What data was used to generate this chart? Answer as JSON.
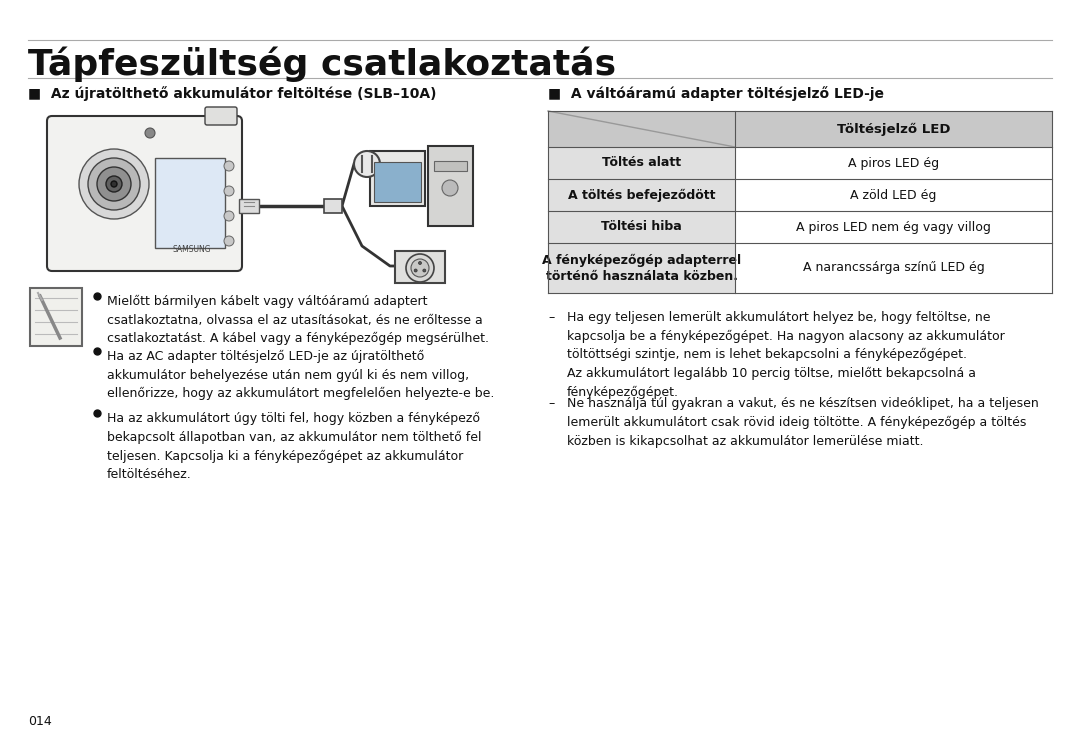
{
  "page_title": "Tápfeszültség csatlakoztatás",
  "bg_color": "#ffffff",
  "text_color": "#111111",
  "section1_title": "■  Az újratölthető akkumulátor feltöltése (SLB–10A)",
  "section2_title": "■  A váltóáramú adapter töltésjelző LED-je",
  "table_header": "Töltésjelző LED",
  "table_rows": [
    [
      "Töltés alatt",
      "A piros LED ég"
    ],
    [
      "A töltés befejeződött",
      "A zöld LED ég"
    ],
    [
      "Töltési hiba",
      "A piros LED nem ég vagy villog"
    ],
    [
      "A fényképezőgép adapterrel\ntörténő használata közben.",
      "A narancssárga színű LED ég"
    ]
  ],
  "table_header_bg": "#c8c8c8",
  "table_row_left_bg": "#e0e0e0",
  "table_row_right_bg": "#ffffff",
  "table_border_color": "#555555",
  "bullet_points": [
    "Mielőtt bármilyen kábelt vagy váltóáramú adaptert\ncsatlakoztatna, olvassa el az utasításokat, és ne erőltesse a\ncsatlakoztatást. A kábel vagy a fényképezőgép megsérülhet.",
    "Ha az AC adapter töltésjelző LED-je az újratölthető\nakkumulátor behelyezése után nem gyúl ki és nem villog,\nellenőrizze, hogy az akkumulátort megfelelően helyezte-e be.",
    "Ha az akkumulátort úgy tölti fel, hogy közben a fényképező\nbekapcsolt állapotban van, az akkumulátor nem tölthető fel\nteljesen. Kapcsolja ki a fényképezőgépet az akkumulátor\nfeltöltéséhez."
  ],
  "dash_points": [
    "Ha egy teljesen lemerült akkumulátort helyez be, hogy feltöltse, ne\nkapcsolja be a fényképezőgépet. Ha nagyon alacsony az akkumulátor\ntöltöttségi szintje, nem is lehet bekapcsolni a fényképezőgépet.\nAz akkumulátort legalább 10 percig töltse, mielőtt bekapcsolná a\nfényképezőgépet.",
    "Ne használja túl gyakran a vakut, és ne készítsen videóklipet, ha a teljesen\nlemerült akkumulátort csak rövid ideig töltötte. A fényképezőgép a töltés\nközben is kikapcsolhat az akkumulátor lemerülése miatt."
  ],
  "page_number": "014",
  "title_font_size": 26,
  "section_font_size": 10,
  "body_font_size": 9,
  "table_font_size": 9
}
